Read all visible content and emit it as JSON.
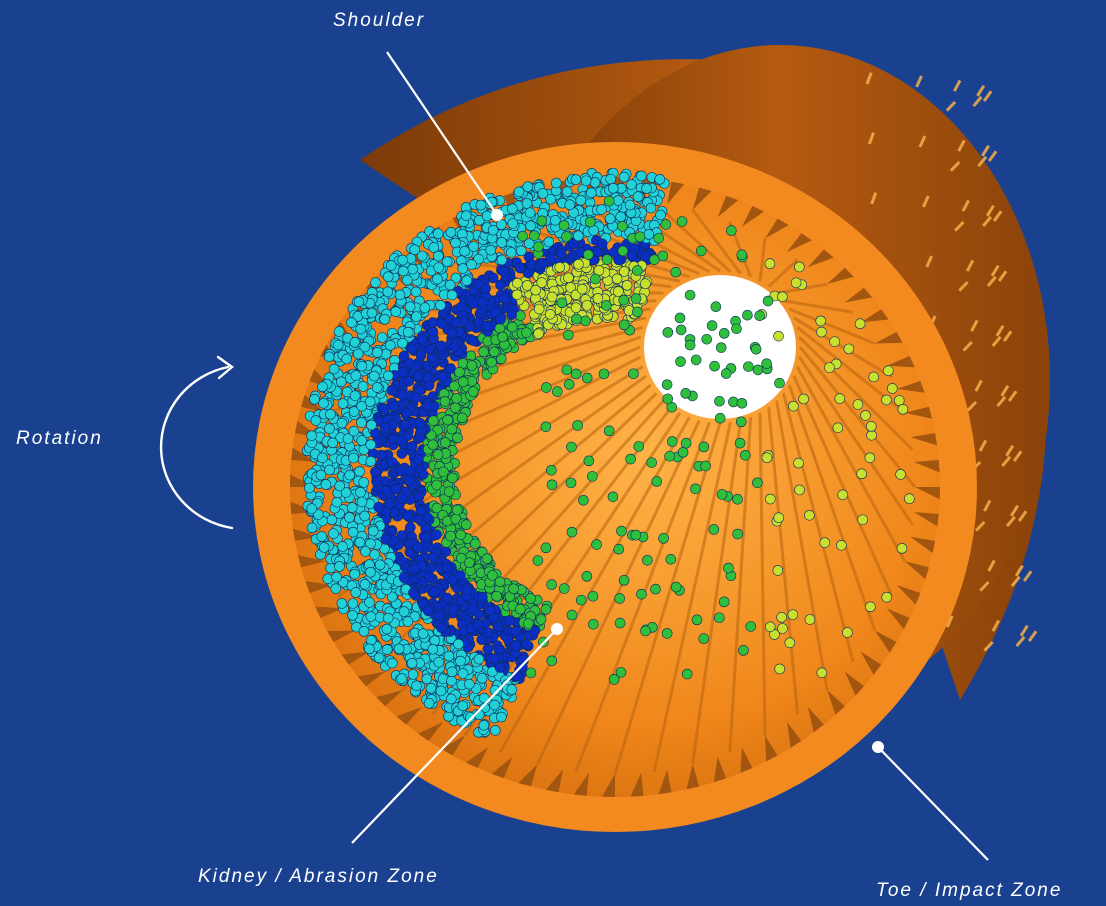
{
  "labels": {
    "shoulder": "Shoulder",
    "rotation": "Rotation",
    "kidney": "Kidney / Abrasion Zone",
    "toe": "Toe / Impact Zone"
  },
  "icons": {
    "rotation_arrow": "curved-arrow-icon"
  },
  "colors": {
    "background": "#1a4190",
    "mill_shell": "#a8520c",
    "mill_face": "#f28a1f",
    "lifter": "#b36312",
    "particle_slow": "#0b2fc2",
    "particle_mid": "#22d1d6",
    "particle_fast": "#2fbf3a",
    "particle_top": "#c9e02f",
    "annotation": "#ffffff"
  }
}
